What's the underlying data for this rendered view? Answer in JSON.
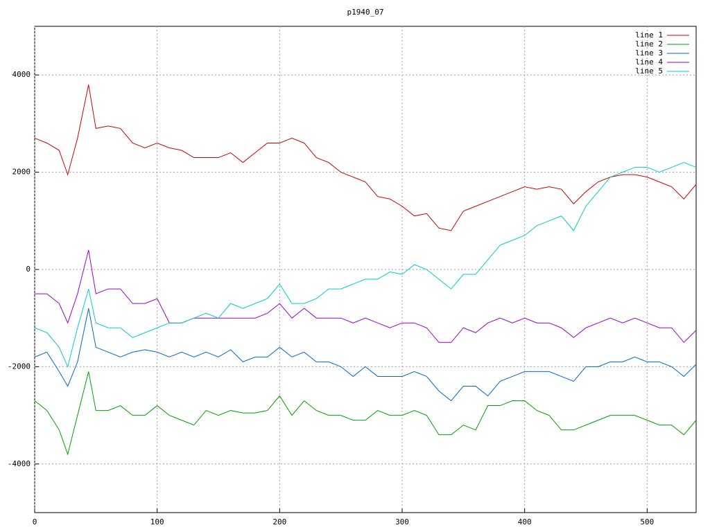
{
  "chart_data": {
    "type": "line",
    "title": "p1940_07",
    "x": [
      0,
      10,
      20,
      27,
      35,
      44,
      50,
      60,
      70,
      80,
      90,
      100,
      110,
      120,
      130,
      140,
      150,
      160,
      170,
      180,
      190,
      200,
      210,
      220,
      230,
      240,
      250,
      260,
      270,
      280,
      290,
      300,
      310,
      320,
      330,
      340,
      350,
      360,
      370,
      380,
      390,
      400,
      410,
      420,
      430,
      440,
      450,
      460,
      470,
      480,
      490,
      500,
      510,
      520,
      530,
      540
    ],
    "series": [
      {
        "name": "line 1",
        "color": "#cc0000",
        "values": [
          2700,
          2600,
          2450,
          1950,
          2700,
          3800,
          2900,
          2950,
          2900,
          2600,
          2500,
          2600,
          2500,
          2450,
          2300,
          2300,
          2300,
          2400,
          2200,
          2400,
          2600,
          2600,
          2700,
          2600,
          2300,
          2200,
          2000,
          1900,
          1800,
          1500,
          1450,
          1300,
          1100,
          1150,
          850,
          800,
          1200,
          1300,
          1400,
          1500,
          1600,
          1700,
          1650,
          1700,
          1650,
          1350,
          1600,
          1800,
          1900,
          1950,
          1950,
          1900,
          1800,
          1700,
          1450,
          1750
        ]
      },
      {
        "name": "line 2",
        "color": "#00a000",
        "values": [
          -2700,
          -2900,
          -3300,
          -3800,
          -3000,
          -2100,
          -2900,
          -2900,
          -2800,
          -3000,
          -3000,
          -2800,
          -3000,
          -3100,
          -3200,
          -2900,
          -3000,
          -2900,
          -2950,
          -2950,
          -2900,
          -2600,
          -3000,
          -2700,
          -2900,
          -3000,
          -3000,
          -3100,
          -3100,
          -2900,
          -3000,
          -3000,
          -2900,
          -3000,
          -3400,
          -3400,
          -3200,
          -3300,
          -2800,
          -2800,
          -2700,
          -2700,
          -2900,
          -3000,
          -3300,
          -3300,
          -3200,
          -3100,
          -3000,
          -3000,
          -3000,
          -3100,
          -3200,
          -3200,
          -3400,
          -3100
        ]
      },
      {
        "name": "line 3",
        "color": "#0066cc",
        "values": [
          -1800,
          -1700,
          -2100,
          -2400,
          -1900,
          -800,
          -1600,
          -1700,
          -1800,
          -1700,
          -1650,
          -1700,
          -1800,
          -1700,
          -1800,
          -1700,
          -1800,
          -1650,
          -1900,
          -1800,
          -1800,
          -1600,
          -1800,
          -1700,
          -1900,
          -1900,
          -2000,
          -2200,
          -2000,
          -2200,
          -2200,
          -2200,
          -2100,
          -2200,
          -2500,
          -2700,
          -2400,
          -2400,
          -2600,
          -2300,
          -2200,
          -2100,
          -2100,
          -2100,
          -2200,
          -2300,
          -2000,
          -2000,
          -1900,
          -1900,
          -1800,
          -1900,
          -1900,
          -2000,
          -2200,
          -1950
        ]
      },
      {
        "name": "line 4",
        "color": "#9900cc",
        "values": [
          -500,
          -500,
          -700,
          -1100,
          -500,
          400,
          -500,
          -400,
          -400,
          -700,
          -700,
          -600,
          -1100,
          -1100,
          -1000,
          -1000,
          -1000,
          -1000,
          -1000,
          -1000,
          -900,
          -700,
          -1000,
          -800,
          -1000,
          -1000,
          -1000,
          -1100,
          -1000,
          -1100,
          -1200,
          -1100,
          -1100,
          -1200,
          -1500,
          -1500,
          -1200,
          -1300,
          -1100,
          -1000,
          -1100,
          -1000,
          -1100,
          -1100,
          -1200,
          -1400,
          -1200,
          -1100,
          -1000,
          -1100,
          -1000,
          -1100,
          -1200,
          -1200,
          -1500,
          -1250
        ]
      },
      {
        "name": "line 5",
        "color": "#00cccc",
        "values": [
          -1200,
          -1300,
          -1600,
          -2000,
          -1200,
          -400,
          -1100,
          -1200,
          -1200,
          -1400,
          -1300,
          -1200,
          -1100,
          -1100,
          -1000,
          -900,
          -1000,
          -700,
          -800,
          -700,
          -600,
          -300,
          -700,
          -700,
          -600,
          -400,
          -400,
          -300,
          -200,
          -200,
          -50,
          -100,
          100,
          0,
          -200,
          -400,
          -100,
          -100,
          200,
          500,
          600,
          700,
          900,
          1000,
          1100,
          800,
          1300,
          1600,
          1900,
          2000,
          2100,
          2100,
          2000,
          2100,
          2200,
          2100
        ]
      }
    ],
    "xlim": [
      0,
      540
    ],
    "ylim": [
      -5000,
      5000
    ],
    "xticks": [
      0,
      100,
      200,
      300,
      400,
      500
    ],
    "yticks": [
      -4000,
      -2000,
      0,
      2000,
      4000
    ],
    "grid": true,
    "legend": "top-right"
  }
}
